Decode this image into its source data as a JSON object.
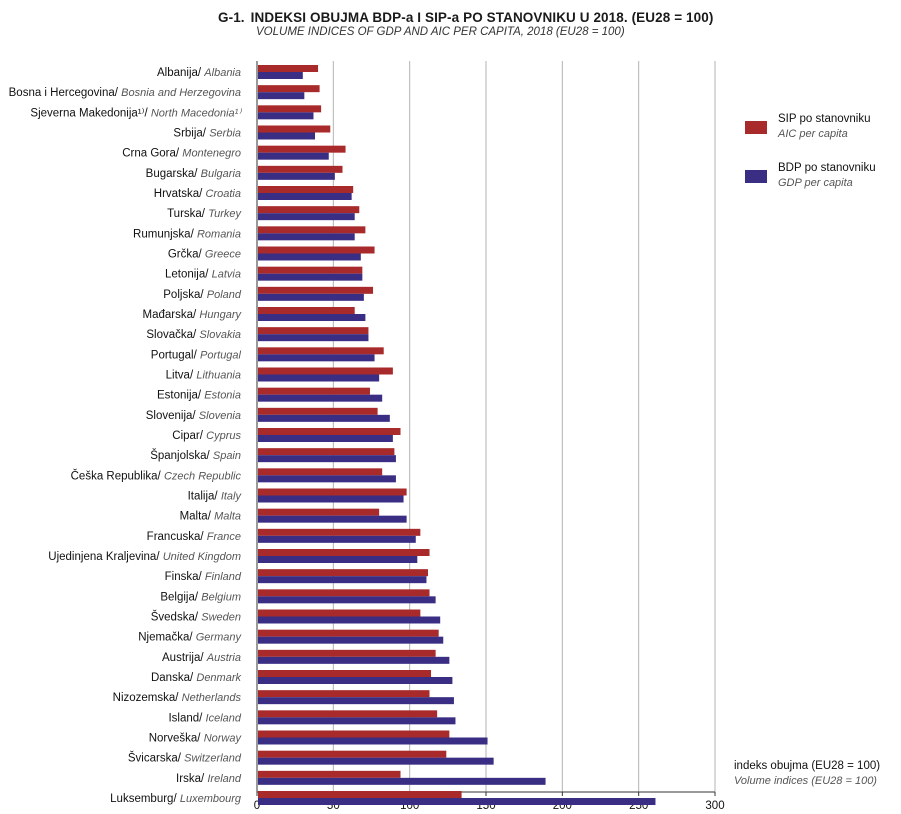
{
  "chart_data": {
    "type": "bar",
    "orientation": "horizontal",
    "title": "INDEKSI OBUJMA BDP-a I SIP-a PO STANOVNIKU U 2018. (EU28 = 100)",
    "title_number": "G-1.",
    "subtitle": "VOLUME INDICES OF GDP AND AIC PER CAPITA, 2018 (EU28 = 100)",
    "axis_note": "indeks obujma (EU28 = 100)",
    "axis_note_en": "Volume indices (EU28 = 100)",
    "xlim": [
      0,
      300
    ],
    "xticks": [
      "0",
      "50",
      "100",
      "150",
      "200",
      "250",
      "300"
    ],
    "grid": true,
    "legend_position": "right",
    "categories": [
      {
        "name": "Albanija/",
        "name_en": "Albania"
      },
      {
        "name": "Bosna i Hercegovina/",
        "name_en": "Bosnia and Herzegovina"
      },
      {
        "name": "Sjeverna Makedonija¹⁾/",
        "name_en": "North Macedonia¹⁾"
      },
      {
        "name": "Srbija/",
        "name_en": "Serbia"
      },
      {
        "name": "Crna Gora/",
        "name_en": "Montenegro"
      },
      {
        "name": "Bugarska/",
        "name_en": "Bulgaria"
      },
      {
        "name": "Hrvatska/",
        "name_en": "Croatia"
      },
      {
        "name": "Turska/",
        "name_en": "Turkey"
      },
      {
        "name": "Rumunjska/",
        "name_en": "Romania"
      },
      {
        "name": "Grčka/",
        "name_en": "Greece"
      },
      {
        "name": "Letonija/",
        "name_en": "Latvia"
      },
      {
        "name": "Poljska/",
        "name_en": "Poland"
      },
      {
        "name": "Mađarska/",
        "name_en": "Hungary"
      },
      {
        "name": "Slovačka/",
        "name_en": "Slovakia"
      },
      {
        "name": "Portugal/",
        "name_en": "Portugal"
      },
      {
        "name": "Litva/",
        "name_en": "Lithuania"
      },
      {
        "name": "Estonija/",
        "name_en": "Estonia"
      },
      {
        "name": "Slovenija/",
        "name_en": "Slovenia"
      },
      {
        "name": "Cipar/",
        "name_en": "Cyprus"
      },
      {
        "name": "Španjolska/",
        "name_en": "Spain"
      },
      {
        "name": "Češka Republika/",
        "name_en": "Czech Republic"
      },
      {
        "name": "Italija/",
        "name_en": "Italy"
      },
      {
        "name": "Malta/",
        "name_en": "Malta"
      },
      {
        "name": "Francuska/",
        "name_en": "France"
      },
      {
        "name": "Ujedinjena Kraljevina/",
        "name_en": "United Kingdom"
      },
      {
        "name": "Finska/",
        "name_en": "Finland"
      },
      {
        "name": "Belgija/",
        "name_en": "Belgium"
      },
      {
        "name": "Švedska/",
        "name_en": "Sweden"
      },
      {
        "name": "Njemačka/",
        "name_en": "Germany"
      },
      {
        "name": "Austrija/",
        "name_en": "Austria"
      },
      {
        "name": "Danska/",
        "name_en": "Denmark"
      },
      {
        "name": "Nizozemska/",
        "name_en": "Netherlands"
      },
      {
        "name": "Island/",
        "name_en": "Iceland"
      },
      {
        "name": "Norveška/",
        "name_en": "Norway"
      },
      {
        "name": "Švicarska/",
        "name_en": "Switzerland"
      },
      {
        "name": "Irska/",
        "name_en": "Ireland"
      },
      {
        "name": "Luksemburg/",
        "name_en": "Luxembourg"
      }
    ],
    "series": [
      {
        "name": "SIP po stanovniku",
        "name_en": "AIC per capita",
        "color": "#a82a2a",
        "values": [
          40,
          41,
          42,
          48,
          58,
          56,
          63,
          67,
          71,
          77,
          69,
          76,
          64,
          73,
          83,
          89,
          74,
          79,
          94,
          90,
          82,
          98,
          80,
          107,
          113,
          112,
          113,
          107,
          119,
          117,
          114,
          113,
          118,
          126,
          124,
          94,
          134
        ]
      },
      {
        "name": "BDP po stanovniku",
        "name_en": "GDP per capita",
        "color": "#3a2d84",
        "values": [
          30,
          31,
          37,
          38,
          47,
          51,
          62,
          64,
          64,
          68,
          69,
          70,
          71,
          73,
          77,
          80,
          82,
          87,
          89,
          91,
          91,
          96,
          98,
          104,
          105,
          111,
          117,
          120,
          122,
          126,
          128,
          129,
          130,
          151,
          155,
          189,
          261
        ]
      }
    ]
  }
}
